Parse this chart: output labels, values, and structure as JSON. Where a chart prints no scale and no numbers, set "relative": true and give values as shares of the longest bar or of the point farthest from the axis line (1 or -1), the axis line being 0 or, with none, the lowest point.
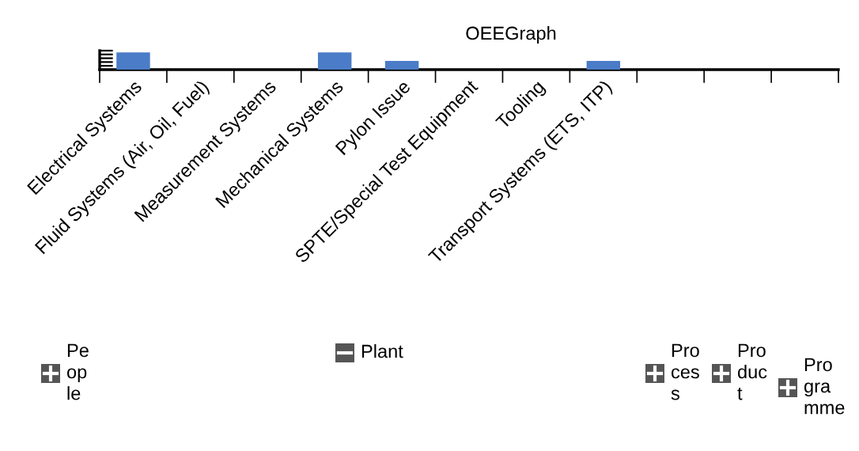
{
  "chart_data": {
    "type": "bar",
    "title": "OEEGraph",
    "categories": [
      "Electrical Systems",
      "Fluid Systems (Air, Oil, Fuel)",
      "Measurement Systems",
      "Mechanical Systems",
      "Pylon Issue",
      "SPTE/Special Test Equipment",
      "Tooling",
      "Transport Systems (ETS, ITP)",
      null,
      null,
      null
    ],
    "values": [
      1,
      0,
      0,
      1,
      0.5,
      0,
      0,
      0.5,
      0,
      0,
      0
    ],
    "color": "#4a7cc7",
    "relative": true,
    "annotations": [
      "People",
      "Plant",
      "Process",
      "Product",
      "Programme"
    ]
  }
}
